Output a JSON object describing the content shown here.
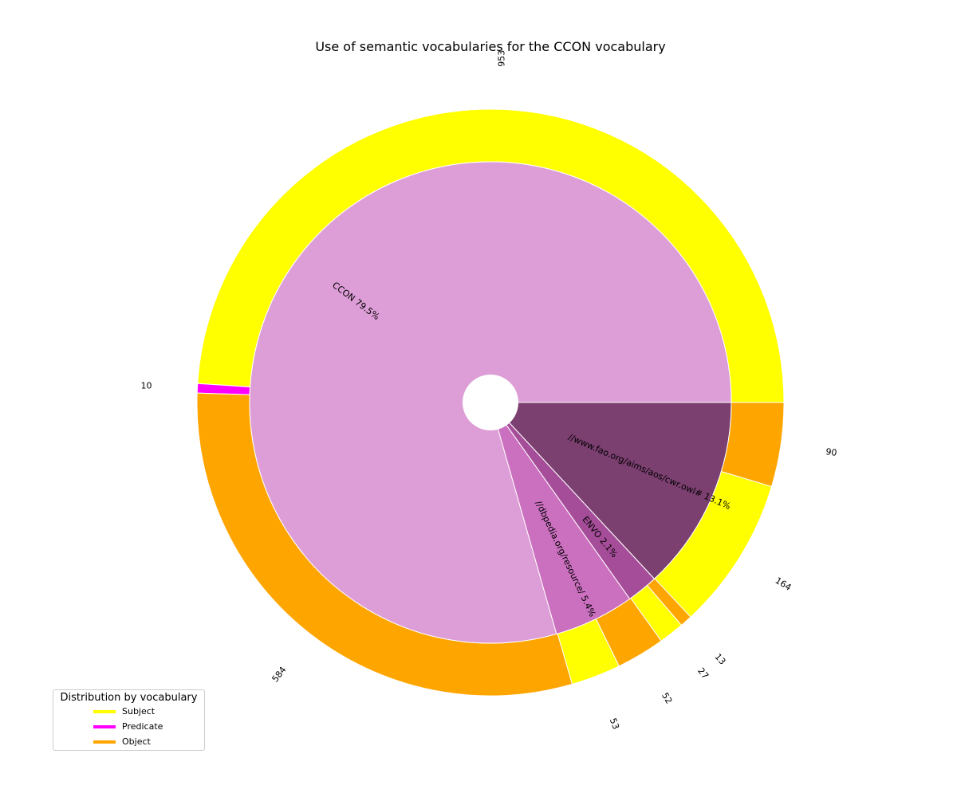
{
  "chart_data": {
    "type": "pie",
    "title": "Use of semantic vocabularies for the CCON vocabulary",
    "inner": {
      "slices": [
        {
          "label": "CCON",
          "percent": "79.5%",
          "value": 79.5,
          "color": "#dd9dd6"
        },
        {
          "label": "//dbpedia.org/resource/",
          "percent": "5.4%",
          "value": 5.4,
          "color": "#cb6fbf"
        },
        {
          "label": "ENVO",
          "percent": "2.1%",
          "value": 2.1,
          "color": "#a64d99"
        },
        {
          "label": "//www.fao.org/aims/aos/cwr.owl#",
          "percent": "13.1%",
          "value": 13.1,
          "color": "#7b3f70"
        }
      ]
    },
    "outer": {
      "slices": [
        {
          "value": 953,
          "label": "953",
          "role": "Subject",
          "color": "#ffff00"
        },
        {
          "value": 10,
          "label": "10",
          "role": "Predicate",
          "color": "#ff00ff"
        },
        {
          "value": 584,
          "label": "584",
          "role": "Object",
          "color": "#ffa500"
        },
        {
          "value": 53,
          "label": "53",
          "role": "Subject",
          "color": "#ffff00"
        },
        {
          "value": 52,
          "label": "52",
          "role": "Object",
          "color": "#ffa500"
        },
        {
          "value": 27,
          "label": "27",
          "role": "Subject",
          "color": "#ffff00"
        },
        {
          "value": 13,
          "label": "13",
          "role": "Object",
          "color": "#ffa500"
        },
        {
          "value": 164,
          "label": "164",
          "role": "Subject",
          "color": "#ffff00"
        },
        {
          "value": 90,
          "label": "90",
          "role": "Object",
          "color": "#ffa500"
        }
      ]
    }
  },
  "legend": {
    "title": "Distribution by vocabulary",
    "items": [
      {
        "label": "Subject",
        "color": "#ffff00"
      },
      {
        "label": "Predicate",
        "color": "#ff00ff"
      },
      {
        "label": "Object",
        "color": "#ffa500"
      }
    ]
  }
}
